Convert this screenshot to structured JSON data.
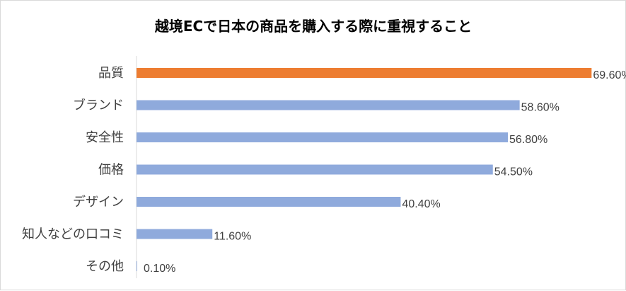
{
  "chart_data": {
    "type": "bar",
    "orientation": "horizontal",
    "title": "越境ECで日本の商品を購入する際に重視すること",
    "categories": [
      "品質",
      "ブランド",
      "安全性",
      "価格",
      "デザイン",
      "知人などの口コミ",
      "その他"
    ],
    "values": [
      69.6,
      58.6,
      56.8,
      54.5,
      40.4,
      11.6,
      0.1
    ],
    "value_labels": [
      "69.60%",
      "58.60%",
      "56.80%",
      "54.50%",
      "40.40%",
      "11.60%",
      "0.10%"
    ],
    "xlim": [
      0,
      74
    ],
    "grid": false,
    "legend": "none",
    "colors": {
      "highlight": "#ED7D31",
      "default": "#8FAADC",
      "axis": "#d9d9d9",
      "label": "#404040"
    },
    "highlight_index": 0
  }
}
